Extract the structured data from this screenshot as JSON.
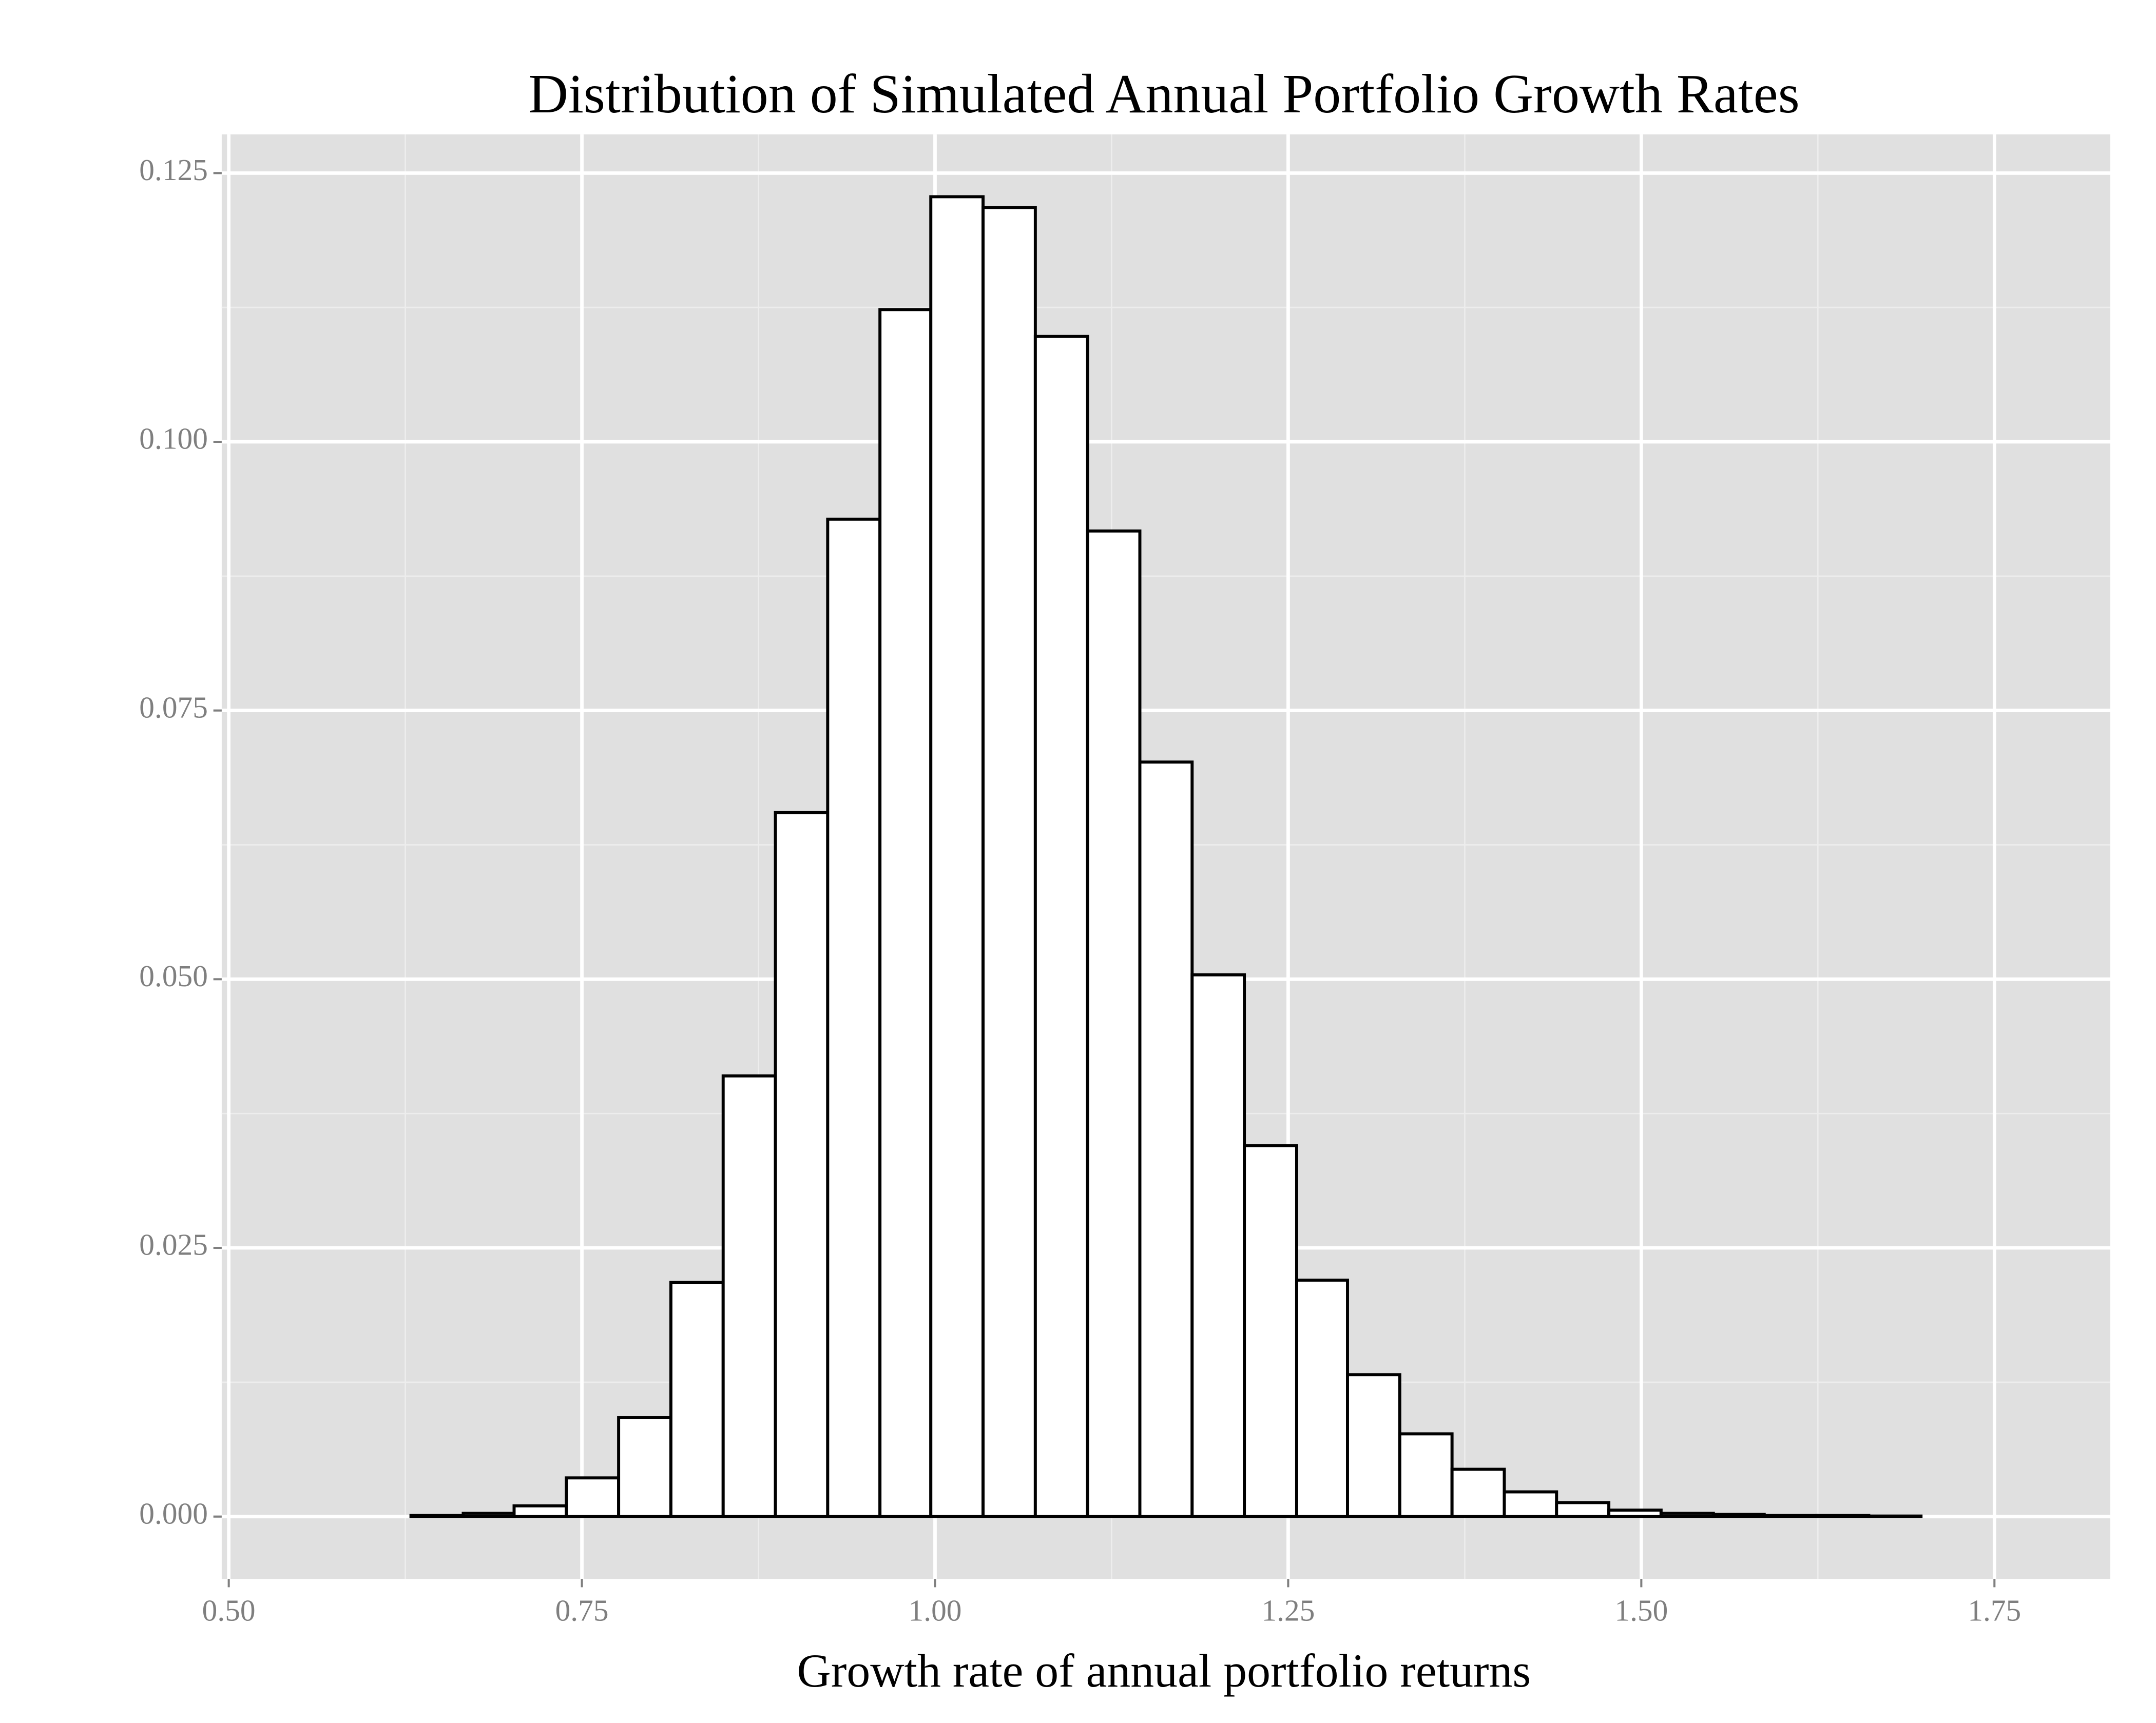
{
  "chart_data": {
    "type": "histogram",
    "title": "Distribution of Simulated Annual Portfolio Growth Rates",
    "x_label": "Growth rate of annual portfolio returns",
    "bins": [
      0.555,
      0.592,
      0.629,
      0.666,
      0.702,
      0.739,
      0.776,
      0.813,
      0.85,
      0.887,
      0.924,
      0.961,
      0.997,
      1.034,
      1.071,
      1.108,
      1.145,
      1.182,
      1.219,
      1.256,
      1.292,
      1.329,
      1.366,
      1.403,
      1.44,
      1.477,
      1.514,
      1.551,
      1.587,
      1.624,
      1.661,
      1.698,
      1.735,
      1.772
    ],
    "values": [
      0,
      0,
      0.0001,
      0.0003,
      0.001,
      0.0036,
      0.0092,
      0.0218,
      0.041,
      0.0655,
      0.0928,
      0.1123,
      0.1228,
      0.1218,
      0.1098,
      0.0917,
      0.0702,
      0.0504,
      0.0345,
      0.022,
      0.0132,
      0.0077,
      0.0044,
      0.0023,
      0.0013,
      0.0006,
      0.0003,
      0.0002,
      0.0001,
      0.0001,
      5e-05,
      0,
      0
    ],
    "fill": "#ffffff",
    "edge_color": "#000000",
    "xlim": [
      0.495,
      1.832
    ],
    "ylim": [
      -0.0058,
      0.1286
    ],
    "xticks": [
      {
        "value": 0.5,
        "label": "0.50"
      },
      {
        "value": 0.75,
        "label": "0.75"
      },
      {
        "value": 1,
        "label": "1.00"
      },
      {
        "value": 1.25,
        "label": "1.25"
      },
      {
        "value": 1.5,
        "label": "1.50"
      },
      {
        "value": 1.75,
        "label": "1.75"
      }
    ],
    "yticks": [
      {
        "value": 0,
        "label": "0.000"
      },
      {
        "value": 0.025,
        "label": "0.025"
      },
      {
        "value": 0.05,
        "label": "0.050"
      },
      {
        "value": 0.075,
        "label": "0.075"
      },
      {
        "value": 0.1,
        "label": "0.100"
      },
      {
        "value": 0.125,
        "label": "0.125"
      }
    ],
    "grid": true,
    "minor_grid": true
  }
}
